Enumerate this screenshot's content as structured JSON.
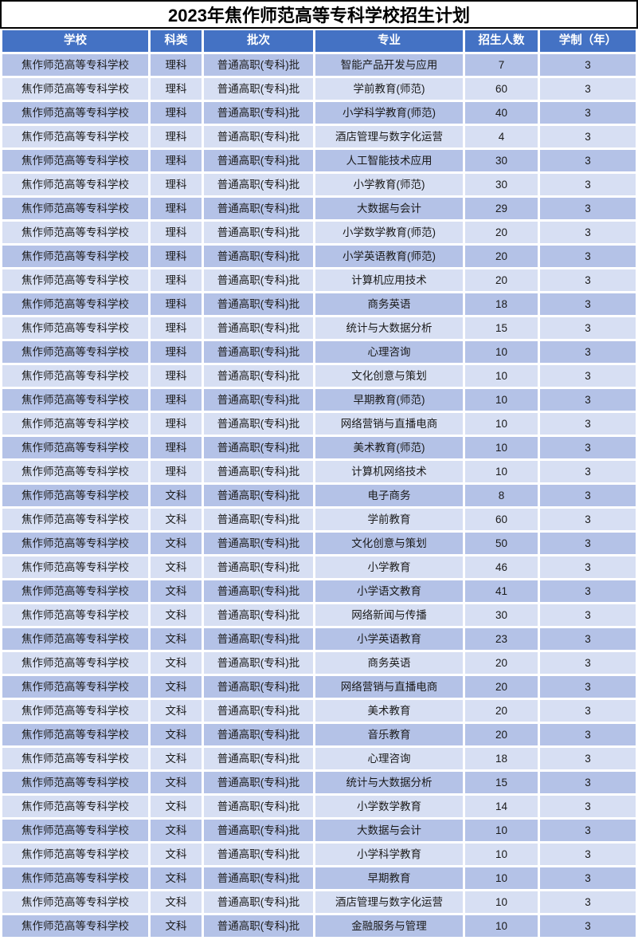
{
  "title": "2023年焦作师范高等专科学校招生计划",
  "colors": {
    "header_bg": "#4472c4",
    "band_dark": "#b4c2e7",
    "band_light": "#d7dff3",
    "header_text": "#ffffff",
    "title_border": "#000000"
  },
  "table": {
    "columns": [
      "学校",
      "科类",
      "批次",
      "专业",
      "招生人数",
      "学制（年）"
    ],
    "rows": [
      {
        "school": "焦作师范高等专科学校",
        "category": "理科",
        "batch": "普通高职(专科)批",
        "major": "智能产品开发与应用",
        "count": "7",
        "years": "3"
      },
      {
        "school": "焦作师范高等专科学校",
        "category": "理科",
        "batch": "普通高职(专科)批",
        "major": "学前教育(师范)",
        "count": "60",
        "years": "3"
      },
      {
        "school": "焦作师范高等专科学校",
        "category": "理科",
        "batch": "普通高职(专科)批",
        "major": "小学科学教育(师范)",
        "count": "40",
        "years": "3"
      },
      {
        "school": "焦作师范高等专科学校",
        "category": "理科",
        "batch": "普通高职(专科)批",
        "major": "酒店管理与数字化运营",
        "count": "4",
        "years": "3"
      },
      {
        "school": "焦作师范高等专科学校",
        "category": "理科",
        "batch": "普通高职(专科)批",
        "major": "人工智能技术应用",
        "count": "30",
        "years": "3"
      },
      {
        "school": "焦作师范高等专科学校",
        "category": "理科",
        "batch": "普通高职(专科)批",
        "major": "小学教育(师范)",
        "count": "30",
        "years": "3"
      },
      {
        "school": "焦作师范高等专科学校",
        "category": "理科",
        "batch": "普通高职(专科)批",
        "major": "大数据与会计",
        "count": "29",
        "years": "3"
      },
      {
        "school": "焦作师范高等专科学校",
        "category": "理科",
        "batch": "普通高职(专科)批",
        "major": "小学数学教育(师范)",
        "count": "20",
        "years": "3"
      },
      {
        "school": "焦作师范高等专科学校",
        "category": "理科",
        "batch": "普通高职(专科)批",
        "major": "小学英语教育(师范)",
        "count": "20",
        "years": "3"
      },
      {
        "school": "焦作师范高等专科学校",
        "category": "理科",
        "batch": "普通高职(专科)批",
        "major": "计算机应用技术",
        "count": "20",
        "years": "3"
      },
      {
        "school": "焦作师范高等专科学校",
        "category": "理科",
        "batch": "普通高职(专科)批",
        "major": "商务英语",
        "count": "18",
        "years": "3"
      },
      {
        "school": "焦作师范高等专科学校",
        "category": "理科",
        "batch": "普通高职(专科)批",
        "major": "统计与大数据分析",
        "count": "15",
        "years": "3"
      },
      {
        "school": "焦作师范高等专科学校",
        "category": "理科",
        "batch": "普通高职(专科)批",
        "major": "心理咨询",
        "count": "10",
        "years": "3"
      },
      {
        "school": "焦作师范高等专科学校",
        "category": "理科",
        "batch": "普通高职(专科)批",
        "major": "文化创意与策划",
        "count": "10",
        "years": "3"
      },
      {
        "school": "焦作师范高等专科学校",
        "category": "理科",
        "batch": "普通高职(专科)批",
        "major": "早期教育(师范)",
        "count": "10",
        "years": "3"
      },
      {
        "school": "焦作师范高等专科学校",
        "category": "理科",
        "batch": "普通高职(专科)批",
        "major": "网络营销与直播电商",
        "count": "10",
        "years": "3"
      },
      {
        "school": "焦作师范高等专科学校",
        "category": "理科",
        "batch": "普通高职(专科)批",
        "major": "美术教育(师范)",
        "count": "10",
        "years": "3"
      },
      {
        "school": "焦作师范高等专科学校",
        "category": "理科",
        "batch": "普通高职(专科)批",
        "major": "计算机网络技术",
        "count": "10",
        "years": "3"
      },
      {
        "school": "焦作师范高等专科学校",
        "category": "文科",
        "batch": "普通高职(专科)批",
        "major": "电子商务",
        "count": "8",
        "years": "3"
      },
      {
        "school": "焦作师范高等专科学校",
        "category": "文科",
        "batch": "普通高职(专科)批",
        "major": "学前教育",
        "count": "60",
        "years": "3"
      },
      {
        "school": "焦作师范高等专科学校",
        "category": "文科",
        "batch": "普通高职(专科)批",
        "major": "文化创意与策划",
        "count": "50",
        "years": "3"
      },
      {
        "school": "焦作师范高等专科学校",
        "category": "文科",
        "batch": "普通高职(专科)批",
        "major": "小学教育",
        "count": "46",
        "years": "3"
      },
      {
        "school": "焦作师范高等专科学校",
        "category": "文科",
        "batch": "普通高职(专科)批",
        "major": "小学语文教育",
        "count": "41",
        "years": "3"
      },
      {
        "school": "焦作师范高等专科学校",
        "category": "文科",
        "batch": "普通高职(专科)批",
        "major": "网络新闻与传播",
        "count": "30",
        "years": "3"
      },
      {
        "school": "焦作师范高等专科学校",
        "category": "文科",
        "batch": "普通高职(专科)批",
        "major": "小学英语教育",
        "count": "23",
        "years": "3"
      },
      {
        "school": "焦作师范高等专科学校",
        "category": "文科",
        "batch": "普通高职(专科)批",
        "major": "商务英语",
        "count": "20",
        "years": "3"
      },
      {
        "school": "焦作师范高等专科学校",
        "category": "文科",
        "batch": "普通高职(专科)批",
        "major": "网络营销与直播电商",
        "count": "20",
        "years": "3"
      },
      {
        "school": "焦作师范高等专科学校",
        "category": "文科",
        "batch": "普通高职(专科)批",
        "major": "美术教育",
        "count": "20",
        "years": "3"
      },
      {
        "school": "焦作师范高等专科学校",
        "category": "文科",
        "batch": "普通高职(专科)批",
        "major": "音乐教育",
        "count": "20",
        "years": "3"
      },
      {
        "school": "焦作师范高等专科学校",
        "category": "文科",
        "batch": "普通高职(专科)批",
        "major": "心理咨询",
        "count": "18",
        "years": "3"
      },
      {
        "school": "焦作师范高等专科学校",
        "category": "文科",
        "batch": "普通高职(专科)批",
        "major": "统计与大数据分析",
        "count": "15",
        "years": "3"
      },
      {
        "school": "焦作师范高等专科学校",
        "category": "文科",
        "batch": "普通高职(专科)批",
        "major": "小学数学教育",
        "count": "14",
        "years": "3"
      },
      {
        "school": "焦作师范高等专科学校",
        "category": "文科",
        "batch": "普通高职(专科)批",
        "major": "大数据与会计",
        "count": "10",
        "years": "3"
      },
      {
        "school": "焦作师范高等专科学校",
        "category": "文科",
        "batch": "普通高职(专科)批",
        "major": "小学科学教育",
        "count": "10",
        "years": "3"
      },
      {
        "school": "焦作师范高等专科学校",
        "category": "文科",
        "batch": "普通高职(专科)批",
        "major": "早期教育",
        "count": "10",
        "years": "3"
      },
      {
        "school": "焦作师范高等专科学校",
        "category": "文科",
        "batch": "普通高职(专科)批",
        "major": "酒店管理与数字化运营",
        "count": "10",
        "years": "3"
      },
      {
        "school": "焦作师范高等专科学校",
        "category": "文科",
        "batch": "普通高职(专科)批",
        "major": "金融服务与管理",
        "count": "10",
        "years": "3"
      }
    ]
  }
}
